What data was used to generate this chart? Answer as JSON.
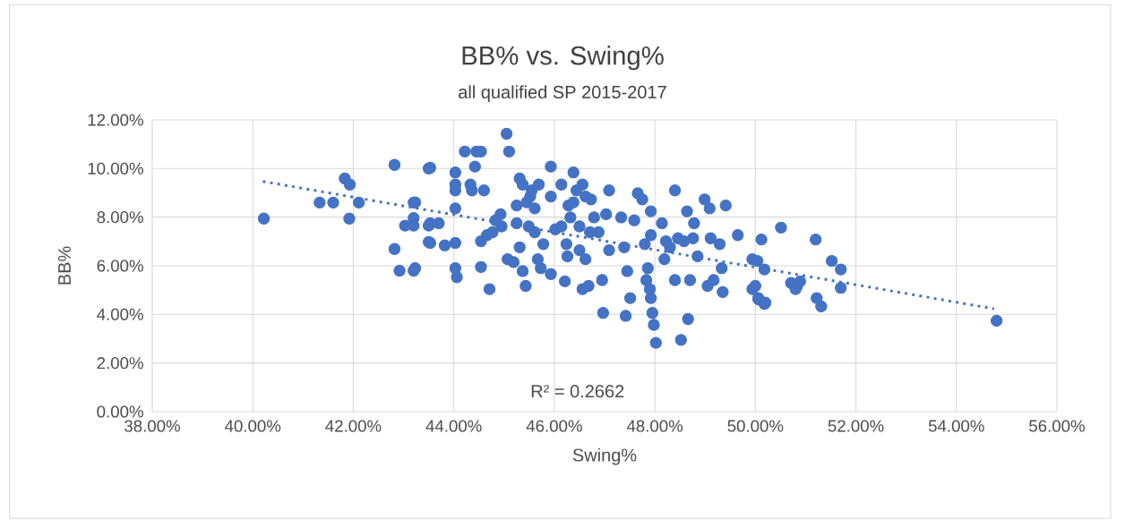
{
  "chart_data": {
    "type": "scatter",
    "title": "BB% vs. Swing%",
    "subtitle": "all qualified SP 2015-2017",
    "xlabel": "Swing%",
    "ylabel": "BB%",
    "xlim": [
      38,
      56
    ],
    "ylim": [
      0,
      12
    ],
    "grid": true,
    "xticks": [
      {
        "value": 38,
        "label": "38.00%"
      },
      {
        "value": 40,
        "label": "40.00%"
      },
      {
        "value": 42,
        "label": "42.00%"
      },
      {
        "value": 44,
        "label": "44.00%"
      },
      {
        "value": 46,
        "label": "46.00%"
      },
      {
        "value": 48,
        "label": "48.00%"
      },
      {
        "value": 50,
        "label": "50.00%"
      },
      {
        "value": 52,
        "label": "52.00%"
      },
      {
        "value": 54,
        "label": "54.00%"
      },
      {
        "value": 56,
        "label": "56.00%"
      }
    ],
    "yticks": [
      {
        "value": 0,
        "label": "0.00%"
      },
      {
        "value": 2,
        "label": "2.00%"
      },
      {
        "value": 4,
        "label": "4.00%"
      },
      {
        "value": 6,
        "label": "6.00%"
      },
      {
        "value": 8,
        "label": "8.00%"
      },
      {
        "value": 10,
        "label": "10.00%"
      },
      {
        "value": 12,
        "label": "12.00%"
      }
    ],
    "annotations": [
      "R² = 0.2662"
    ],
    "series": [
      {
        "color": "#4472c4",
        "marker": "circle",
        "x": [
          40.22,
          41.33,
          41.6,
          41.83,
          41.93,
          41.92,
          42.11,
          42.82,
          42.82,
          42.92,
          43.2,
          43.03,
          43.2,
          43.2,
          43.2,
          43.5,
          43.5,
          43.5,
          43.23,
          43.23,
          43.53,
          43.53,
          43.7,
          43.53,
          43.82,
          44.03,
          44.03,
          44.03,
          44.03,
          44.03,
          44.03,
          44.06,
          44.22,
          44.45,
          44.54,
          44.42,
          44.33,
          44.36,
          44.6,
          44.54,
          44.54,
          44.71,
          44.66,
          44.77,
          44.83,
          44.93,
          44.95,
          45.05,
          45.1,
          45.07,
          45.19,
          45.25,
          45.31,
          45.37,
          45.31,
          45.37,
          45.43,
          45.45,
          45.52,
          45.55,
          45.61,
          45.69,
          45.61,
          45.67,
          45.73,
          45.78,
          45.93,
          45.93,
          45.93,
          46.02,
          46.14,
          46.21,
          46.24,
          46.28,
          46.32,
          46.38,
          46.44,
          46.5,
          46.56,
          46.62,
          46.73,
          46.5,
          46.62,
          46.56,
          46.68,
          46.71,
          46.79,
          46.88,
          46.95,
          46.97,
          47.03,
          47.09,
          47.09,
          47.33,
          47.39,
          47.42,
          47.45,
          47.51,
          47.59,
          47.66,
          47.75,
          47.8,
          47.86,
          47.83,
          47.9,
          47.92,
          47.95,
          47.98,
          48.02,
          47.92,
          47.92,
          48.14,
          48.19,
          48.22,
          48.3,
          48.4,
          48.4,
          48.46,
          48.52,
          48.64,
          48.66,
          48.7,
          48.78,
          48.85,
          48.99,
          49.09,
          49.11,
          49.05,
          49.17,
          49.29,
          49.33,
          49.41,
          49.35,
          49.65,
          49.94,
          50.0,
          50.06,
          50.18,
          48.76,
          48.58,
          46.26,
          46.38,
          46.14,
          45.49,
          45.25,
          50.12,
          50.51,
          51.2,
          50.04,
          50.18,
          49.94,
          50.06,
          50.2,
          50.71,
          50.83,
          50.89,
          50.8,
          51.52,
          51.7,
          51.7,
          51.22,
          51.31,
          54.8
        ],
        "values": [
          7.94,
          8.6,
          8.6,
          9.59,
          9.34,
          7.94,
          8.6,
          10.15,
          6.69,
          5.8,
          5.8,
          7.65,
          7.96,
          8.6,
          7.65,
          10.0,
          7.65,
          6.98,
          8.61,
          5.9,
          10.03,
          7.75,
          7.75,
          6.94,
          6.84,
          9.84,
          9.34,
          9.1,
          8.36,
          6.94,
          5.9,
          5.53,
          10.7,
          10.7,
          10.7,
          10.08,
          9.34,
          9.1,
          9.1,
          7.01,
          5.95,
          5.04,
          7.26,
          7.38,
          7.87,
          8.12,
          7.62,
          11.43,
          10.7,
          6.27,
          6.15,
          8.48,
          9.59,
          9.34,
          6.76,
          5.78,
          5.17,
          8.61,
          8.85,
          9.1,
          8.36,
          9.34,
          7.38,
          6.27,
          5.9,
          6.89,
          10.08,
          8.85,
          5.66,
          7.5,
          7.62,
          5.36,
          6.89,
          8.48,
          7.99,
          8.61,
          9.1,
          7.62,
          9.34,
          8.85,
          8.73,
          6.64,
          6.27,
          5.04,
          5.17,
          7.38,
          7.99,
          7.38,
          5.41,
          4.06,
          8.12,
          9.1,
          6.64,
          7.99,
          6.76,
          3.94,
          5.78,
          4.67,
          7.87,
          8.98,
          8.73,
          6.89,
          5.9,
          5.41,
          5.04,
          4.67,
          4.06,
          3.57,
          2.83,
          8.24,
          7.26,
          7.75,
          6.27,
          7.01,
          6.76,
          9.1,
          5.41,
          7.13,
          2.95,
          8.24,
          3.81,
          5.41,
          7.75,
          6.39,
          8.73,
          8.36,
          7.13,
          5.17,
          5.41,
          6.89,
          5.9,
          8.48,
          4.92,
          7.26,
          6.27,
          5.17,
          4.67,
          4.43,
          7.13,
          7.01,
          6.39,
          9.84,
          9.34,
          7.62,
          7.75,
          7.08,
          7.57,
          7.08,
          6.2,
          5.85,
          5.04,
          4.62,
          4.48,
          5.29,
          5.17,
          5.36,
          5.04,
          6.2,
          5.85,
          5.09,
          4.67,
          4.33,
          3.74
        ]
      },
      {
        "type": "line",
        "color": "#4472c4",
        "marker": "none",
        "line_style": "dotted",
        "x": [
          40.2,
          54.75
        ],
        "values": [
          9.47,
          4.23
        ]
      }
    ]
  }
}
